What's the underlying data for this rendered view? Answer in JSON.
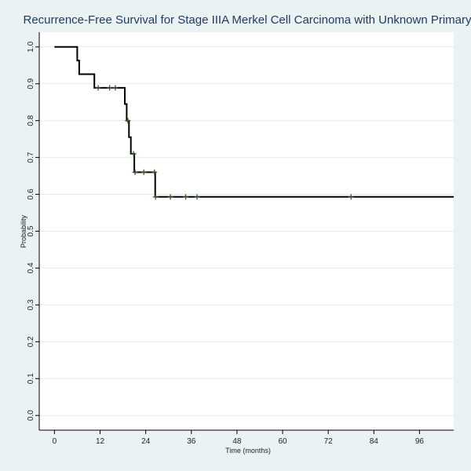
{
  "chart_data": {
    "type": "line",
    "title": "Recurrence-Free Survival for Stage IIIA Merkel Cell Carcinoma with Unknown Primary",
    "xlabel": "Time (months)",
    "ylabel": "Probability",
    "xlim": [
      -4,
      105
    ],
    "ylim": [
      -0.04,
      1.04
    ],
    "x_ticks": [
      0,
      12,
      24,
      36,
      48,
      60,
      72,
      84,
      96
    ],
    "y_ticks": [
      0.0,
      0.1,
      0.2,
      0.3,
      0.4,
      0.5,
      0.6,
      0.7,
      0.8,
      0.9,
      1.0
    ],
    "y_tick_labels": [
      "0.0",
      "0.1",
      "0.2",
      "0.3",
      "0.4",
      "0.5",
      "0.6",
      "0.7",
      "0.8",
      "0.9",
      "1.0"
    ],
    "grid": true,
    "series": [
      {
        "step_points": [
          [
            0,
            1.0
          ],
          [
            6,
            1.0
          ],
          [
            6,
            0.963
          ],
          [
            6.5,
            0.963
          ],
          [
            6.5,
            0.926
          ],
          [
            10.5,
            0.926
          ],
          [
            10.5,
            0.889
          ],
          [
            18.5,
            0.889
          ],
          [
            18.5,
            0.845
          ],
          [
            19,
            0.845
          ],
          [
            19,
            0.8
          ],
          [
            19.6,
            0.8
          ],
          [
            19.6,
            0.755
          ],
          [
            20.1,
            0.755
          ],
          [
            20.1,
            0.71
          ],
          [
            21,
            0.71
          ],
          [
            21,
            0.66
          ],
          [
            26.5,
            0.66
          ],
          [
            26.5,
            0.593
          ],
          [
            105,
            0.593
          ]
        ],
        "censored": [
          [
            11.5,
            0.889
          ],
          [
            14.5,
            0.889
          ],
          [
            16,
            0.889
          ],
          [
            19.3,
            0.8
          ],
          [
            20.8,
            0.71
          ],
          [
            21.2,
            0.66
          ],
          [
            23.5,
            0.66
          ],
          [
            26.3,
            0.66
          ],
          [
            26.6,
            0.593
          ],
          [
            30.5,
            0.593
          ],
          [
            34.5,
            0.593
          ],
          [
            37.5,
            0.593
          ],
          [
            78,
            0.593
          ]
        ]
      }
    ],
    "colors": {
      "curve": "#000000",
      "censor_mark": "#3b5a2e",
      "grid": "#e3ebee",
      "plot_bg": "#ffffff",
      "page_bg": "#eaf2f3"
    }
  }
}
